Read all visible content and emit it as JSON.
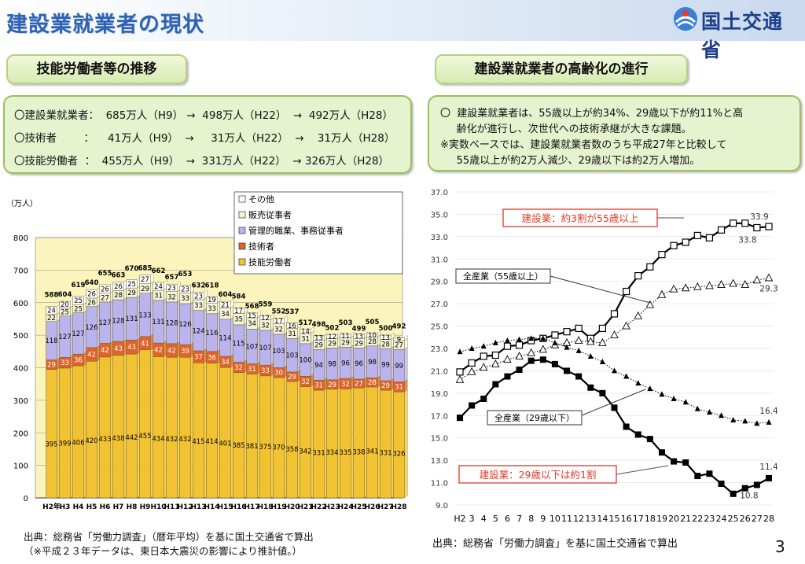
{
  "header": {
    "title": "建設業就業者の現状",
    "org_name": "国土交通省"
  },
  "left_panel": {
    "heading": "技能労働者等の推移",
    "summary": [
      {
        "text": "〇建設業就業者：  685万人（H9） →  498万人（H22）  →  492万人（H28）"
      },
      {
        "text": "〇技術者        ：    41万人（H9）  →     31万人（H22）  →    31万人（H28）"
      },
      {
        "text": "〇技能労働者  ：  455万人（H9）  →  331万人（H22）  → 326万人（H28）"
      }
    ],
    "source_note": "出典：総務省「労働力調査」（暦年平均）を基に国土交通省で算出",
    "source_note2": "（※平成２３年データは、東日本大震災の影響により推計値。）"
  },
  "right_panel": {
    "heading": "建設業就業者の高齢化の進行",
    "notes": [
      "〇  建設業就業者は、55歳以上が約34%、29歳以下が約11%と高",
      "     齢化が進行し、次世代への技術承継が大きな課題。",
      "※実数ベースでは、建設業就業者数のうち平成27年と比較して",
      "     55歳以上が約2万人減少、29歳以下は約2万人増加。"
    ],
    "source_note": "出典：総務省「労働力調査」を基に国土交通省で算出"
  },
  "page_number": "3",
  "colors": {
    "skilled": "#f1c232",
    "engineer": "#e0642a",
    "management": "#b9b3ee",
    "sales": "#f4f5d8",
    "other": "#ffffff",
    "plot_bg": "#fbf4bd",
    "axis": "#222222",
    "callout_border": "#e03a2a",
    "callout_text": "#e03a2a"
  },
  "chart_data": [
    {
      "type": "bar",
      "stacked": true,
      "ylabel": "（万人）",
      "ylim": [
        0,
        800
      ],
      "yticks": [
        "0",
        "100",
        "200",
        "300",
        "400",
        "500",
        "600",
        "700",
        "800"
      ],
      "categories": [
        "H2年",
        "H3",
        "H4",
        "H5",
        "H6",
        "H7",
        "H8",
        "H9",
        "H10",
        "H11",
        "H12",
        "H13",
        "H14",
        "H15",
        "H16",
        "H17",
        "H18",
        "H19",
        "H20",
        "H21",
        "H22",
        "H23",
        "H24",
        "H25",
        "H26",
        "H27",
        "H28"
      ],
      "legend": [
        "その他",
        "販売従事者",
        "管理的職業、事務従事者",
        "技術者",
        "技能労働者"
      ],
      "series": [
        {
          "name": "技能労働者",
          "values": [
            395,
            399,
            406,
            420,
            433,
            438,
            442,
            455,
            434,
            432,
            432,
            415,
            414,
            401,
            385,
            381,
            375,
            370,
            358,
            342,
            331,
            334,
            335,
            338,
            341,
            331,
            326
          ]
        },
        {
          "name": "技術者",
          "values": [
            29,
            33,
            36,
            42,
            42,
            43,
            43,
            41,
            42,
            42,
            39,
            37,
            36,
            34,
            32,
            31,
            33,
            30,
            29,
            32,
            31,
            29,
            32,
            27,
            28,
            29,
            31
          ]
        },
        {
          "name": "管理的職業、事務従事者",
          "values": [
            118,
            127,
            127,
            126,
            127,
            128,
            131,
            133,
            131,
            128,
            126,
            124,
            116,
            114,
            115,
            107,
            107,
            103,
            103,
            100,
            94,
            98,
            96,
            96,
            98,
            99,
            99
          ]
        },
        {
          "name": "販売従事者",
          "values": [
            22,
            25,
            25,
            26,
            27,
            28,
            29,
            29,
            31,
            32,
            33,
            33,
            33,
            34,
            35,
            34,
            32,
            32,
            31,
            31,
            29,
            29,
            29,
            29,
            28,
            28,
            27
          ]
        },
        {
          "name": "その他",
          "values": [
            24,
            20,
            25,
            26,
            26,
            26,
            25,
            27,
            24,
            23,
            23,
            23,
            19,
            21,
            17,
            15,
            12,
            17,
            16,
            14,
            13,
            12,
            11,
            13,
            10,
            13,
            9
          ]
        }
      ],
      "totals": [
        588,
        604,
        619,
        640,
        655,
        663,
        670,
        685,
        662,
        657,
        653,
        632,
        618,
        604,
        584,
        568,
        559,
        552,
        537,
        517,
        498,
        502,
        503,
        499,
        505,
        500,
        492
      ]
    },
    {
      "type": "line",
      "ylim": [
        9.0,
        37.0
      ],
      "yticks": [
        "9.0",
        "11.0",
        "13.0",
        "15.0",
        "17.0",
        "19.0",
        "21.0",
        "23.0",
        "25.0",
        "27.0",
        "29.0",
        "31.0",
        "33.0",
        "35.0",
        "37.0"
      ],
      "x": [
        "H2",
        "3",
        "4",
        "5",
        "6",
        "7",
        "8",
        "9",
        "10",
        "11",
        "12",
        "13",
        "14",
        "15",
        "16",
        "17",
        "18",
        "19",
        "20",
        "21",
        "22",
        "23",
        "24",
        "25",
        "26",
        "27",
        "28"
      ],
      "series": [
        {
          "name": "建設業（55歳以上）",
          "marker": "open-square",
          "line": "solid",
          "values": [
            20.9,
            21.7,
            22.3,
            22.4,
            23.2,
            23.3,
            23.7,
            23.9,
            24.2,
            24.5,
            24.8,
            23.9,
            24.8,
            26.1,
            28.1,
            29.5,
            30.3,
            31.4,
            32.2,
            32.5,
            33.1,
            32.9,
            33.6,
            34.2,
            34.2,
            33.8,
            33.9
          ]
        },
        {
          "name": "全産業（55歳以上）",
          "marker": "open-triangle",
          "line": "dotted",
          "values": [
            20.2,
            20.9,
            21.3,
            21.6,
            22.0,
            22.3,
            22.6,
            22.9,
            23.3,
            23.5,
            23.7,
            23.6,
            23.5,
            24.2,
            25.0,
            25.9,
            26.9,
            27.8,
            28.3,
            28.4,
            28.5,
            28.6,
            28.7,
            28.8,
            28.7,
            29.1,
            29.3
          ]
        },
        {
          "name": "全産業（29歳以下）",
          "marker": "filled-triangle",
          "line": "dotted",
          "values": [
            22.7,
            23.0,
            23.2,
            23.5,
            23.7,
            23.8,
            23.9,
            23.9,
            23.5,
            23.1,
            22.8,
            22.3,
            21.8,
            21.0,
            20.5,
            19.9,
            19.4,
            18.9,
            18.5,
            18.2,
            17.6,
            17.3,
            17.0,
            16.6,
            16.5,
            16.3,
            16.4
          ]
        },
        {
          "name": "建設業（29歳以下）",
          "marker": "filled-square",
          "line": "solid",
          "values": [
            16.8,
            17.9,
            18.5,
            19.8,
            20.5,
            21.1,
            21.9,
            22.0,
            21.6,
            21.0,
            20.5,
            19.5,
            19.0,
            17.7,
            16.0,
            15.3,
            14.9,
            13.7,
            12.9,
            12.8,
            11.6,
            11.8,
            10.9,
            10.0,
            10.5,
            10.8,
            11.4
          ]
        }
      ],
      "value_labels": [
        {
          "series": "建設業（55歳以上）",
          "index": 26,
          "text": "33.9"
        },
        {
          "series": "建設業（55歳以上）",
          "index": 25,
          "text": "33.8"
        },
        {
          "series": "全産業（55歳以上）",
          "index": 26,
          "text": "29.3"
        },
        {
          "series": "全産業（29歳以下）",
          "index": 26,
          "text": "16.4"
        },
        {
          "series": "建設業（29歳以下）",
          "index": 26,
          "text": "11.4"
        },
        {
          "series": "建設業（29歳以下）",
          "index": 25,
          "text": "10.8"
        }
      ],
      "annotations": [
        {
          "text": "建設業：約3割が55歳以上",
          "style": "callout-red"
        },
        {
          "text": "全産業（55歳以上）",
          "style": "label-box"
        },
        {
          "text": "全産業（29歳以下）",
          "style": "label-box"
        },
        {
          "text": "建設業：29歳以下は約1割",
          "style": "callout-red"
        }
      ]
    }
  ]
}
